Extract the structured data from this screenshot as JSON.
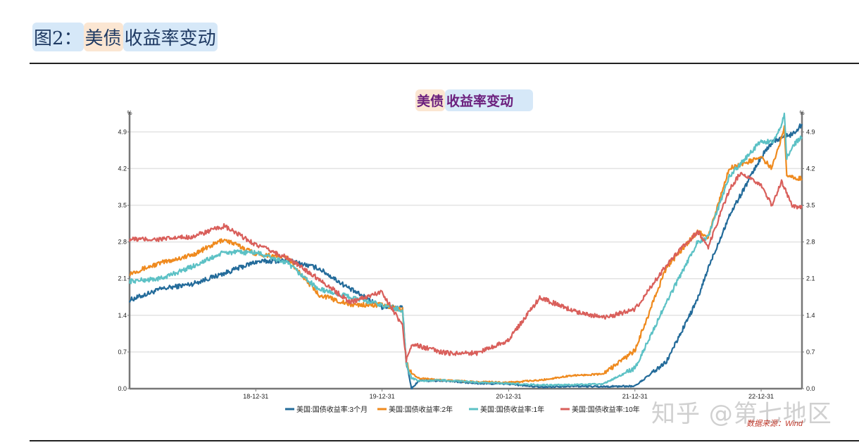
{
  "page": {
    "title_parts": [
      "图2：",
      "美债",
      "收益率变动"
    ]
  },
  "chart": {
    "title_parts": [
      "美债",
      "收益率变动"
    ],
    "source": "数据来源：Wind",
    "watermark": "知乎 @第七地区"
  },
  "chart_data": {
    "type": "line",
    "title": "美债收益率变动",
    "ylabel": "%",
    "ylim": [
      0,
      5.2
    ],
    "yticks": [
      0.0,
      0.7,
      1.4,
      2.1,
      2.8,
      3.5,
      4.2,
      4.9
    ],
    "x_start": "2017-12-31",
    "x_end": "2023-04-28",
    "xticks": [
      "18-12-31",
      "19-12-31",
      "20-12-31",
      "21-12-31",
      "22-12-31"
    ],
    "grid": true,
    "legend_position": "bottom",
    "series": [
      {
        "name": "美国:国债收益率:3个月",
        "color": "#236b9a",
        "points": [
          [
            "2017-12-31",
            1.69
          ],
          [
            "2018-03-31",
            1.9
          ],
          [
            "2018-06-30",
            2.0
          ],
          [
            "2018-09-30",
            2.2
          ],
          [
            "2018-12-31",
            2.42
          ],
          [
            "2019-03-31",
            2.45
          ],
          [
            "2019-06-30",
            2.3
          ],
          [
            "2019-09-30",
            1.9
          ],
          [
            "2019-12-31",
            1.56
          ],
          [
            "2020-02-28",
            1.55
          ],
          [
            "2020-03-10",
            0.5
          ],
          [
            "2020-03-25",
            0.0
          ],
          [
            "2020-04-15",
            0.15
          ],
          [
            "2020-06-30",
            0.15
          ],
          [
            "2020-09-30",
            0.1
          ],
          [
            "2020-12-31",
            0.09
          ],
          [
            "2021-03-31",
            0.03
          ],
          [
            "2021-06-30",
            0.05
          ],
          [
            "2021-09-30",
            0.04
          ],
          [
            "2021-12-31",
            0.05
          ],
          [
            "2022-03-31",
            0.5
          ],
          [
            "2022-06-30",
            1.7
          ],
          [
            "2022-07-31",
            2.3
          ],
          [
            "2022-09-30",
            3.3
          ],
          [
            "2022-12-31",
            4.42
          ],
          [
            "2023-01-31",
            4.7
          ],
          [
            "2023-02-28",
            4.8
          ],
          [
            "2023-03-31",
            4.85
          ],
          [
            "2023-04-28",
            5.05
          ]
        ]
      },
      {
        "name": "美国:国债收益率:2年",
        "color": "#ef8a1e",
        "points": [
          [
            "2017-12-31",
            2.2
          ],
          [
            "2018-03-31",
            2.4
          ],
          [
            "2018-06-30",
            2.55
          ],
          [
            "2018-09-30",
            2.85
          ],
          [
            "2018-12-31",
            2.58
          ],
          [
            "2019-03-31",
            2.5
          ],
          [
            "2019-06-30",
            1.8
          ],
          [
            "2019-09-30",
            1.6
          ],
          [
            "2019-12-31",
            1.6
          ],
          [
            "2020-02-28",
            1.5
          ],
          [
            "2020-03-10",
            0.5
          ],
          [
            "2020-03-25",
            0.3
          ],
          [
            "2020-04-15",
            0.2
          ],
          [
            "2020-06-30",
            0.16
          ],
          [
            "2020-09-30",
            0.13
          ],
          [
            "2020-12-31",
            0.12
          ],
          [
            "2021-03-31",
            0.16
          ],
          [
            "2021-06-30",
            0.25
          ],
          [
            "2021-09-30",
            0.28
          ],
          [
            "2021-12-31",
            0.73
          ],
          [
            "2022-03-31",
            2.3
          ],
          [
            "2022-06-30",
            3.0
          ],
          [
            "2022-07-31",
            2.9
          ],
          [
            "2022-09-30",
            4.2
          ],
          [
            "2022-12-31",
            4.42
          ],
          [
            "2023-01-31",
            4.2
          ],
          [
            "2023-02-28",
            4.8
          ],
          [
            "2023-03-08",
            5.0
          ],
          [
            "2023-03-15",
            4.1
          ],
          [
            "2023-03-31",
            4.05
          ],
          [
            "2023-04-28",
            4.0
          ]
        ]
      },
      {
        "name": "美国:国债收益率:1年",
        "color": "#5cc1c5",
        "points": [
          [
            "2017-12-31",
            2.05
          ],
          [
            "2018-03-31",
            2.1
          ],
          [
            "2018-06-30",
            2.33
          ],
          [
            "2018-09-30",
            2.6
          ],
          [
            "2018-12-31",
            2.6
          ],
          [
            "2019-03-31",
            2.4
          ],
          [
            "2019-06-30",
            1.9
          ],
          [
            "2019-09-30",
            1.75
          ],
          [
            "2019-12-31",
            1.59
          ],
          [
            "2020-02-28",
            1.5
          ],
          [
            "2020-03-10",
            0.5
          ],
          [
            "2020-03-25",
            0.2
          ],
          [
            "2020-04-15",
            0.15
          ],
          [
            "2020-06-30",
            0.16
          ],
          [
            "2020-09-30",
            0.12
          ],
          [
            "2020-12-31",
            0.1
          ],
          [
            "2021-03-31",
            0.07
          ],
          [
            "2021-06-30",
            0.07
          ],
          [
            "2021-09-30",
            0.09
          ],
          [
            "2021-12-31",
            0.39
          ],
          [
            "2022-03-31",
            1.63
          ],
          [
            "2022-06-30",
            2.8
          ],
          [
            "2022-07-31",
            2.9
          ],
          [
            "2022-09-30",
            4.05
          ],
          [
            "2022-12-31",
            4.73
          ],
          [
            "2023-01-31",
            4.7
          ],
          [
            "2023-02-28",
            5.0
          ],
          [
            "2023-03-08",
            5.25
          ],
          [
            "2023-03-15",
            4.4
          ],
          [
            "2023-03-31",
            4.64
          ],
          [
            "2023-04-28",
            4.8
          ]
        ]
      },
      {
        "name": "美国:国债收益率:10年",
        "color": "#d95f5b",
        "points": [
          [
            "2017-12-31",
            2.85
          ],
          [
            "2018-03-31",
            2.85
          ],
          [
            "2018-06-30",
            2.9
          ],
          [
            "2018-09-30",
            3.1
          ],
          [
            "2018-12-31",
            2.75
          ],
          [
            "2019-03-31",
            2.5
          ],
          [
            "2019-06-30",
            2.1
          ],
          [
            "2019-09-30",
            1.65
          ],
          [
            "2019-12-31",
            1.85
          ],
          [
            "2020-02-28",
            1.2
          ],
          [
            "2020-03-10",
            0.55
          ],
          [
            "2020-03-25",
            0.85
          ],
          [
            "2020-06-30",
            0.68
          ],
          [
            "2020-09-30",
            0.68
          ],
          [
            "2020-12-31",
            0.93
          ],
          [
            "2021-03-31",
            1.74
          ],
          [
            "2021-06-30",
            1.5
          ],
          [
            "2021-09-30",
            1.35
          ],
          [
            "2021-12-31",
            1.51
          ],
          [
            "2022-03-31",
            2.35
          ],
          [
            "2022-06-30",
            3.0
          ],
          [
            "2022-07-31",
            2.7
          ],
          [
            "2022-09-30",
            3.8
          ],
          [
            "2022-10-31",
            4.1
          ],
          [
            "2022-12-31",
            3.88
          ],
          [
            "2023-01-31",
            3.5
          ],
          [
            "2023-02-28",
            3.95
          ],
          [
            "2023-03-31",
            3.48
          ],
          [
            "2023-04-28",
            3.45
          ]
        ]
      }
    ]
  }
}
